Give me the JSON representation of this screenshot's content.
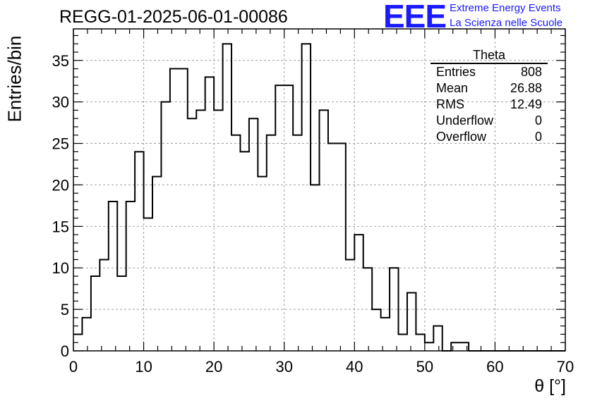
{
  "header": {
    "title": "REGG-01-2025-06-01-00086",
    "logo_text": "EEE",
    "brand_line1": "Extreme Energy Events",
    "brand_line2": "La Scienza nelle Scuole",
    "brand_color": "#1a1aff"
  },
  "stats_box": {
    "title": "Theta",
    "rows": [
      {
        "label": "Entries",
        "value": "808"
      },
      {
        "label": "Mean",
        "value": "26.88"
      },
      {
        "label": "RMS",
        "value": "12.49"
      },
      {
        "label": "Underflow",
        "value": "0"
      },
      {
        "label": "Overflow",
        "value": "0"
      }
    ]
  },
  "chart_data": {
    "type": "histogram",
    "xlabel": "θ [°]",
    "ylabel": "Entries/bin",
    "xlim": [
      0,
      70
    ],
    "ylim": [
      0,
      38.8
    ],
    "bin_width": 1.25,
    "x_start": 0,
    "values": [
      2,
      4,
      9,
      11,
      18,
      9,
      18,
      24,
      16,
      21,
      30,
      34,
      34,
      28,
      29,
      33,
      29,
      37,
      26,
      24,
      28,
      21,
      26,
      32,
      32,
      26,
      37,
      20,
      29,
      25,
      25,
      11,
      14,
      10,
      5,
      4,
      10,
      2,
      7,
      2,
      1,
      3,
      0,
      1,
      1,
      0,
      0,
      0,
      0,
      0,
      0,
      0,
      0,
      0,
      0,
      0
    ],
    "x_ticks": [
      0,
      10,
      20,
      30,
      40,
      50,
      60,
      70
    ],
    "x_tick_labels": [
      "0",
      "10",
      "20",
      "30",
      "40",
      "50",
      "60",
      "70"
    ],
    "y_ticks": [
      0,
      5,
      10,
      15,
      20,
      25,
      30,
      35
    ],
    "y_tick_labels": [
      "0",
      "5",
      "10",
      "15",
      "20",
      "25",
      "30",
      "35"
    ],
    "grid": true,
    "line_color": "#000000",
    "grid_color": "#a0a0a0"
  }
}
